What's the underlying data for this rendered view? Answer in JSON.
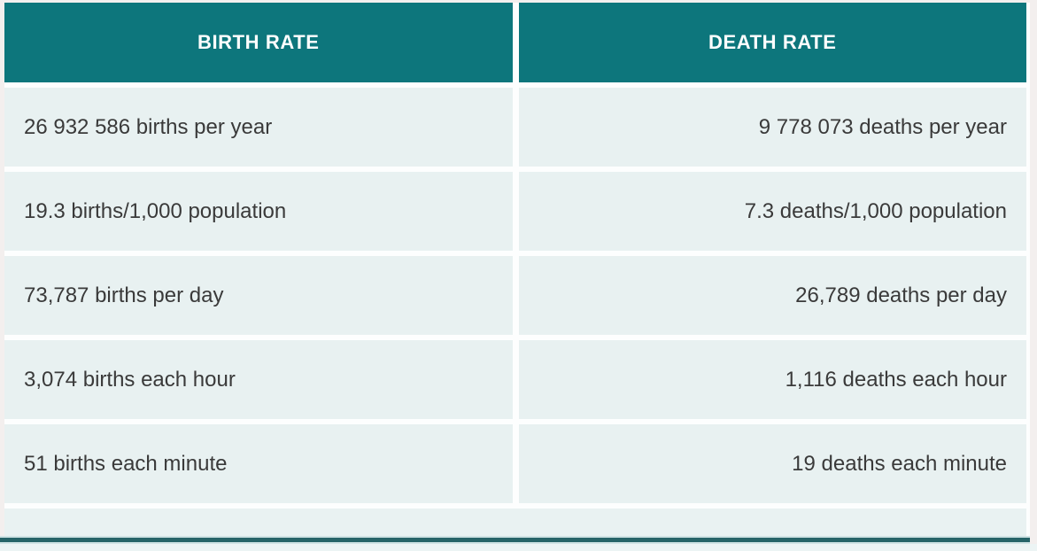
{
  "chart_data": {
    "type": "table",
    "title": "",
    "columns": [
      "BIRTH RATE",
      "DEATH RATE"
    ],
    "rows": [
      {
        "birth": "26 932 586 births per year",
        "death": "9 778 073 deaths per year"
      },
      {
        "birth": "19.3 births/1,000 population",
        "death": "7.3 deaths/1,000 population"
      },
      {
        "birth": "73,787 births per day",
        "death": "26,789 deaths per day"
      },
      {
        "birth": "3,074 births each hour",
        "death": "1,116 deaths each hour"
      },
      {
        "birth": "51 births each minute",
        "death": "19 deaths each minute"
      }
    ]
  },
  "theme": {
    "header_bg": "#0d767c",
    "header_text": "#ffffff",
    "cell_bg": "#e8f1f1",
    "body_text": "#3a3a3a",
    "divider": "#fdfefe",
    "bottom_rule_dark": "#266468",
    "bottom_rule_light": "#cfe3e4",
    "page_bg": "#f3efee"
  }
}
